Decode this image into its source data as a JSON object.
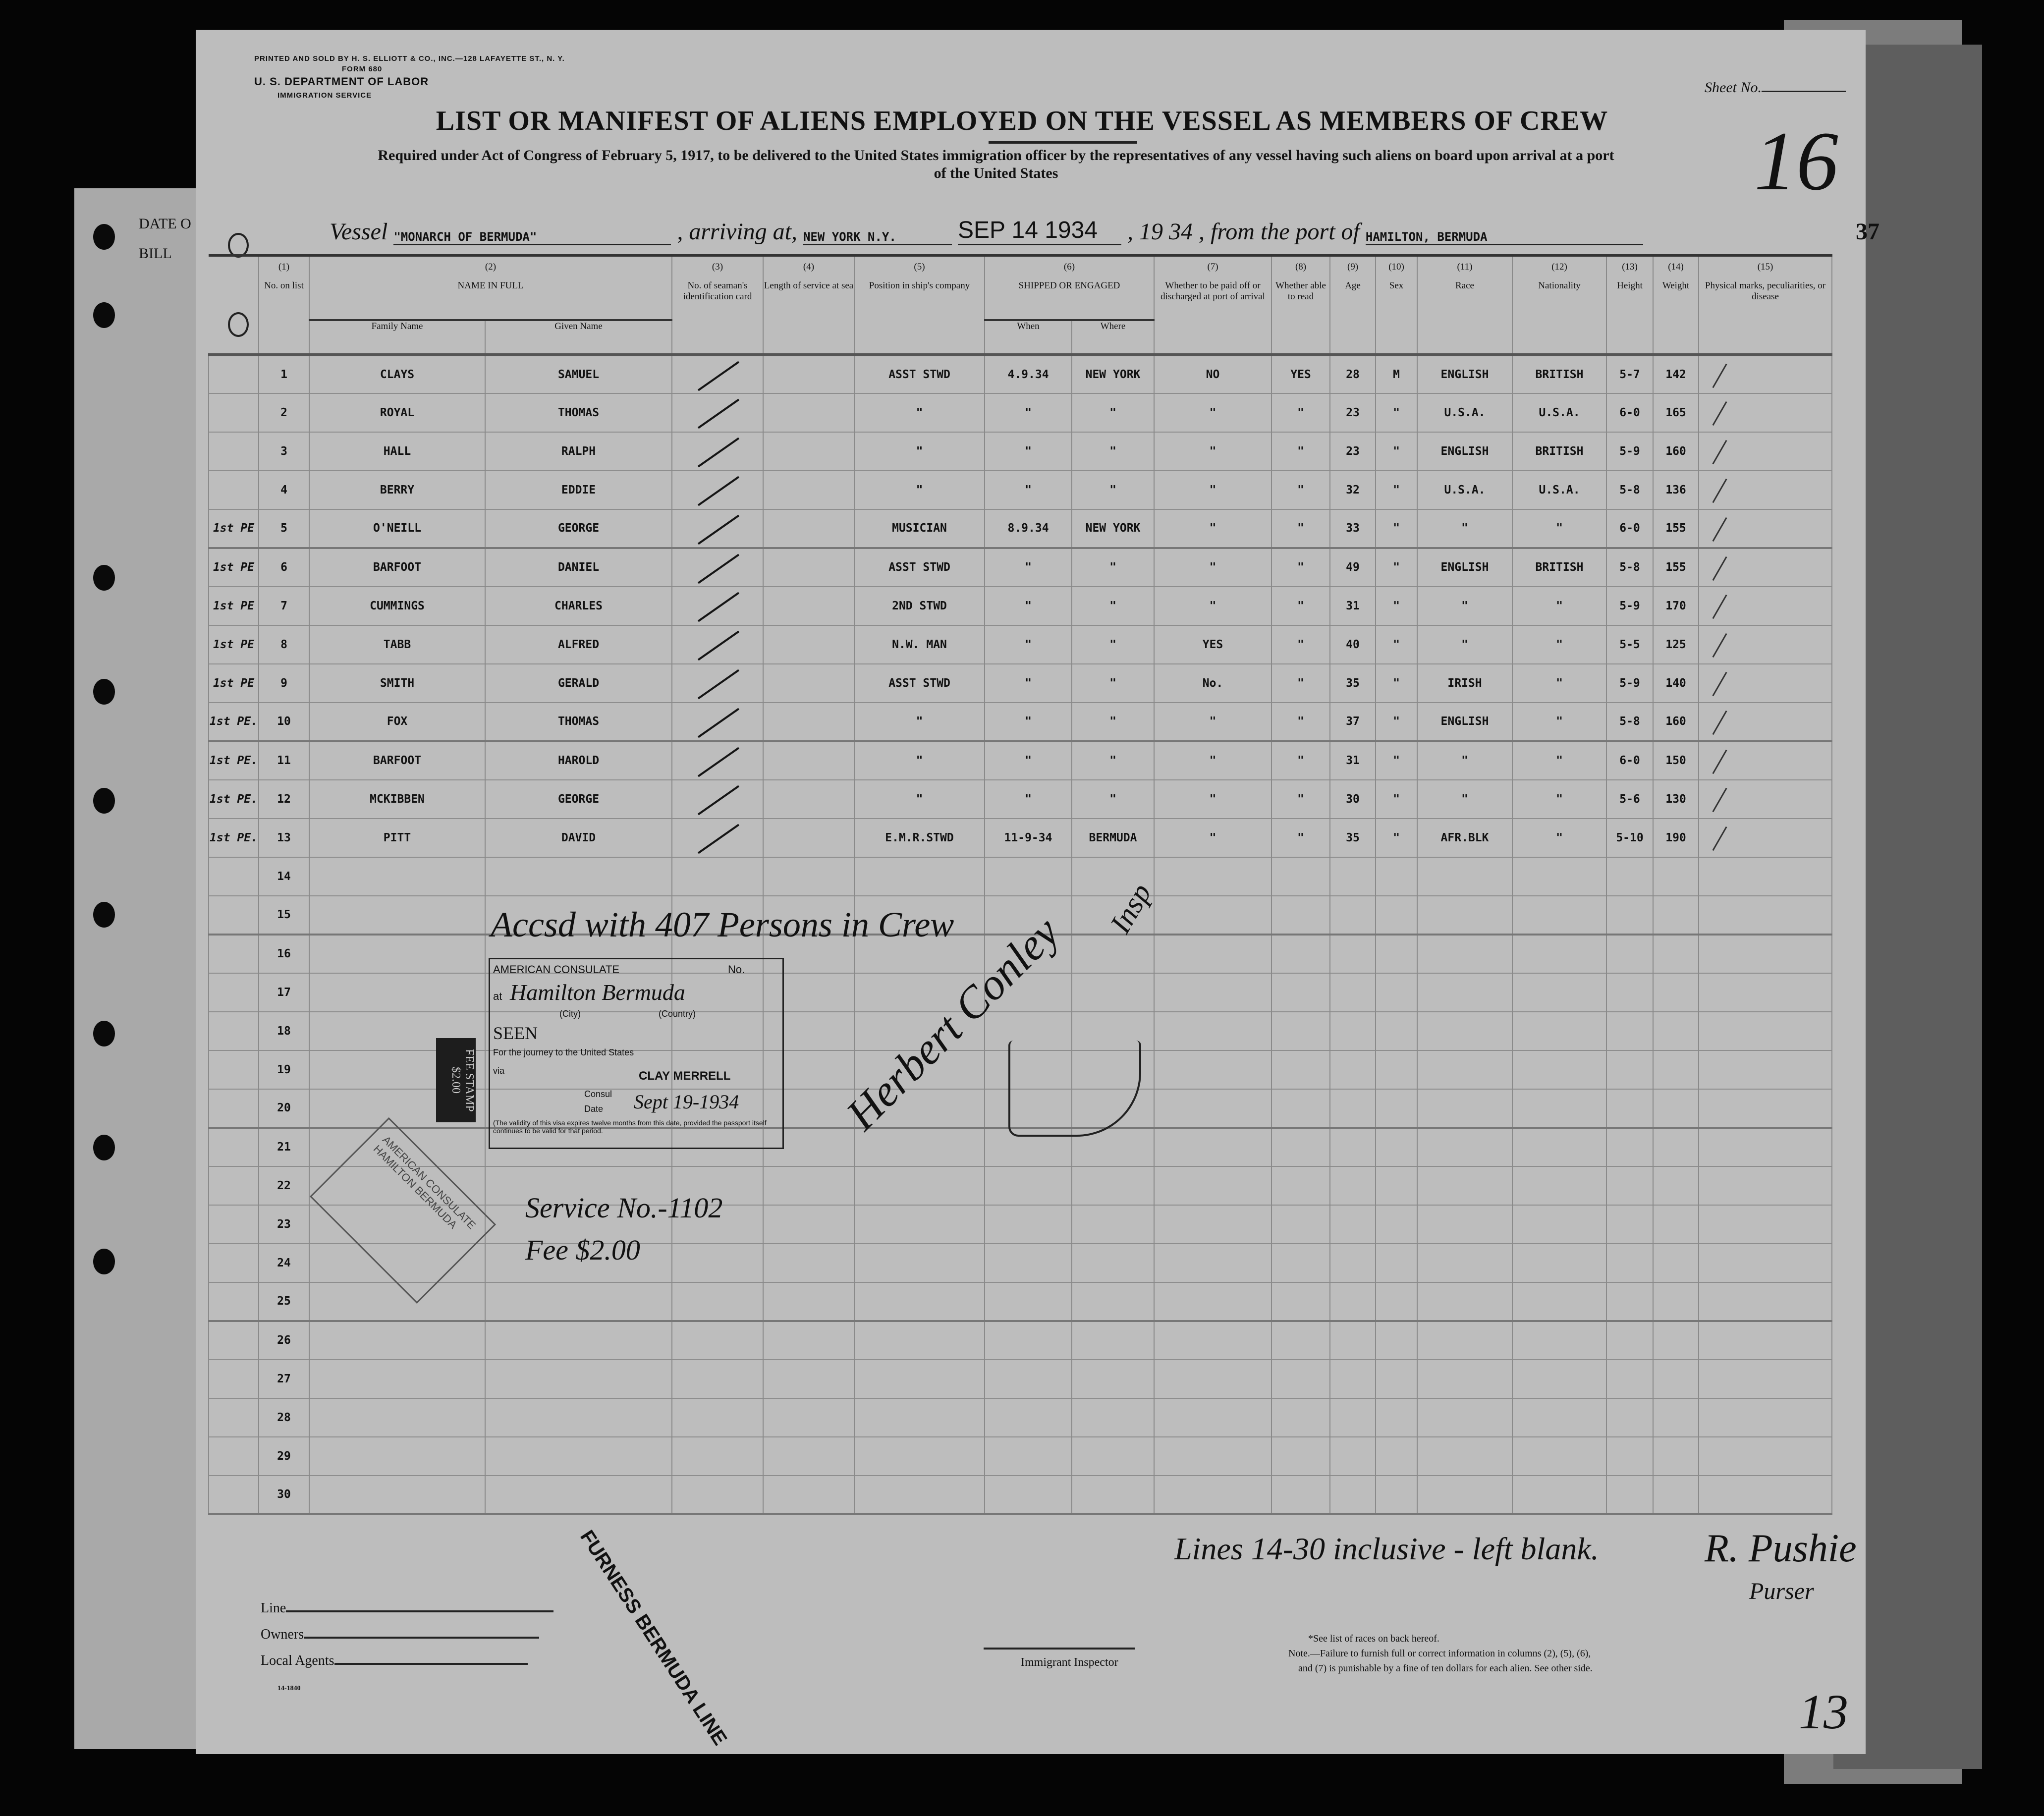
{
  "form": {
    "printer": "PRINTED AND SOLD BY H. S. ELLIOTT & CO., INC.—128 LAFAYETTE ST., N. Y.",
    "form_no": "FORM 680",
    "department": "U. S. DEPARTMENT OF LABOR",
    "service": "IMMIGRATION SERVICE",
    "sheet_label": "Sheet No.",
    "title": "LIST OR MANIFEST OF ALIENS EMPLOYED ON THE VESSEL AS MEMBERS OF CREW",
    "subtitle_1": "Required under Act of Congress of February 5, 1917, to be delivered to the United States immigration officer by the representatives of any vessel having such aliens on board upon arrival at a port",
    "subtitle_2": "of the United States",
    "sheet_handwritten": "16",
    "page_number": "37",
    "left_margin_1": "DATE O",
    "left_margin_2": "BILL"
  },
  "vessel_line": {
    "vessel_label": "Vessel",
    "vessel": "\"MONARCH OF BERMUDA\"",
    "arriving_label": ", arriving at,",
    "arriving": "NEW YORK N.Y.",
    "date_stamp": "SEP 14 1934",
    "year_label": ", 19",
    "year": "34",
    "from_label": ", from the port of",
    "from_port": "HAMILTON, BERMUDA"
  },
  "columns": {
    "c1": {
      "num": "(1)",
      "label": "No. on list"
    },
    "c2": {
      "num": "(2)",
      "label": "NAME IN FULL",
      "family": "Family Name",
      "given": "Given Name"
    },
    "c3": {
      "num": "(3)",
      "label": "No. of seaman's identification card"
    },
    "c4": {
      "num": "(4)",
      "label": "Length of service at sea"
    },
    "c5": {
      "num": "(5)",
      "label": "Position in ship's company"
    },
    "c6": {
      "num": "(6)",
      "label": "SHIPPED OR ENGAGED",
      "when": "When",
      "where": "Where"
    },
    "c7": {
      "num": "(7)",
      "label": "Whether to be paid off or discharged at port of arrival"
    },
    "c8": {
      "num": "(8)",
      "label": "Whether able to read"
    },
    "c9": {
      "num": "(9)",
      "label": "Age"
    },
    "c10": {
      "num": "(10)",
      "label": "Sex"
    },
    "c11": {
      "num": "(11)",
      "label": "Race"
    },
    "c12": {
      "num": "(12)",
      "label": "Nationality"
    },
    "c13": {
      "num": "(13)",
      "label": "Height"
    },
    "c14": {
      "num": "(14)",
      "label": "Weight"
    },
    "c15": {
      "num": "(15)",
      "label": "Physical marks, peculiarities, or disease"
    }
  },
  "rows": [
    {
      "note": "",
      "no": "1",
      "family": "CLAYS",
      "given": "SAMUEL",
      "position": "ASST STWD",
      "when": "4.9.34",
      "where": "NEW YORK",
      "paid_off": "NO",
      "read": "YES",
      "age": "28",
      "sex": "M",
      "race": "ENGLISH",
      "nationality": "BRITISH",
      "height": "5-7",
      "weight": "142",
      "checked": true
    },
    {
      "note": "",
      "no": "2",
      "family": "ROYAL",
      "given": "THOMAS",
      "position": "\"",
      "when": "\"",
      "where": "\"",
      "paid_off": "\"",
      "read": "\"",
      "age": "23",
      "sex": "\"",
      "race": "U.S.A.",
      "nationality": "U.S.A.",
      "height": "6-0",
      "weight": "165",
      "checked": true
    },
    {
      "note": "",
      "no": "3",
      "family": "HALL",
      "given": "RALPH",
      "position": "\"",
      "when": "\"",
      "where": "\"",
      "paid_off": "\"",
      "read": "\"",
      "age": "23",
      "sex": "\"",
      "race": "ENGLISH",
      "nationality": "BRITISH",
      "height": "5-9",
      "weight": "160",
      "checked": true
    },
    {
      "note": "",
      "no": "4",
      "family": "BERRY",
      "given": "EDDIE",
      "position": "\"",
      "when": "\"",
      "where": "\"",
      "paid_off": "\"",
      "read": "\"",
      "age": "32",
      "sex": "\"",
      "race": "U.S.A.",
      "nationality": "U.S.A.",
      "height": "5-8",
      "weight": "136",
      "checked": true
    },
    {
      "note": "1st PE",
      "no": "5",
      "family": "O'NEILL",
      "given": "GEORGE",
      "position": "MUSICIAN",
      "when": "8.9.34",
      "where": "NEW YORK",
      "paid_off": "\"",
      "read": "\"",
      "age": "33",
      "sex": "\"",
      "race": "\"",
      "nationality": "\"",
      "height": "6-0",
      "weight": "155",
      "checked": true
    },
    {
      "note": "1st PE",
      "no": "6",
      "family": "BARFOOT",
      "given": "DANIEL",
      "position": "ASST STWD",
      "when": "\"",
      "where": "\"",
      "paid_off": "\"",
      "read": "\"",
      "age": "49",
      "sex": "\"",
      "race": "ENGLISH",
      "nationality": "BRITISH",
      "height": "5-8",
      "weight": "155",
      "checked": true
    },
    {
      "note": "1st PE",
      "no": "7",
      "family": "CUMMINGS",
      "given": "CHARLES",
      "position": "2ND STWD",
      "when": "\"",
      "where": "\"",
      "paid_off": "\"",
      "read": "\"",
      "age": "31",
      "sex": "\"",
      "race": "\"",
      "nationality": "\"",
      "height": "5-9",
      "weight": "170",
      "checked": true
    },
    {
      "note": "1st PE",
      "no": "8",
      "family": "TABB",
      "given": "ALFRED",
      "position": "N.W. MAN",
      "when": "\"",
      "where": "\"",
      "paid_off": "YES",
      "read": "\"",
      "age": "40",
      "sex": "\"",
      "race": "\"",
      "nationality": "\"",
      "height": "5-5",
      "weight": "125",
      "checked": true
    },
    {
      "note": "1st PE",
      "no": "9",
      "family": "SMITH",
      "given": "GERALD",
      "position": "ASST STWD",
      "when": "\"",
      "where": "\"",
      "paid_off": "No.",
      "read": "\"",
      "age": "35",
      "sex": "\"",
      "race": "IRISH",
      "nationality": "\"",
      "height": "5-9",
      "weight": "140",
      "checked": true
    },
    {
      "note": "1st PE.",
      "no": "10",
      "family": "FOX",
      "given": "THOMAS",
      "position": "\"",
      "when": "\"",
      "where": "\"",
      "paid_off": "\"",
      "read": "\"",
      "age": "37",
      "sex": "\"",
      "race": "ENGLISH",
      "nationality": "\"",
      "height": "5-8",
      "weight": "160",
      "checked": true
    },
    {
      "note": "1st PE.",
      "no": "11",
      "family": "BARFOOT",
      "given": "HAROLD",
      "position": "\"",
      "when": "\"",
      "where": "\"",
      "paid_off": "\"",
      "read": "\"",
      "age": "31",
      "sex": "\"",
      "race": "\"",
      "nationality": "\"",
      "height": "6-0",
      "weight": "150",
      "checked": true
    },
    {
      "note": "1st PE.",
      "no": "12",
      "family": "MCKIBBEN",
      "given": "GEORGE",
      "position": "\"",
      "when": "\"",
      "where": "\"",
      "paid_off": "\"",
      "read": "\"",
      "age": "30",
      "sex": "\"",
      "race": "\"",
      "nationality": "\"",
      "height": "5-6",
      "weight": "130",
      "checked": true
    },
    {
      "note": "1st PE.",
      "no": "13",
      "family": "PITT",
      "given": "DAVID",
      "position": "E.M.R.STWD",
      "when": "11-9-34",
      "where": "BERMUDA",
      "paid_off": "\"",
      "read": "\"",
      "age": "35",
      "sex": "\"",
      "race": "AFR.BLK",
      "nationality": "\"",
      "height": "5-10",
      "weight": "190",
      "checked": true
    },
    {
      "no": "14"
    },
    {
      "no": "15"
    },
    {
      "no": "16"
    },
    {
      "no": "17"
    },
    {
      "no": "18"
    },
    {
      "no": "19"
    },
    {
      "no": "20"
    },
    {
      "no": "21"
    },
    {
      "no": "22"
    },
    {
      "no": "23"
    },
    {
      "no": "24"
    },
    {
      "no": "25"
    },
    {
      "no": "26"
    },
    {
      "no": "27"
    },
    {
      "no": "28"
    },
    {
      "no": "29"
    },
    {
      "no": "30"
    }
  ],
  "annotations": {
    "crew_note": "Accsd with 407 Persons in Crew",
    "inspector_signature": "Herbert Conley",
    "inspector_title": "Insp",
    "service_no": "Service No.-1102",
    "fee": "Fee $2.00",
    "lines_blank": "Lines 14-30 inclusive - left blank.",
    "purser_signature": "R. Pushie",
    "purser_title": "Purser",
    "corner_number": "13"
  },
  "consulate_stamp": {
    "heading": "AMERICAN CONSULATE",
    "at": "at",
    "city_handwritten": "Hamilton Bermuda",
    "city_label": "(City)",
    "country_label": "(Country)",
    "no_label": "No.",
    "seen": "SEEN",
    "journey": "For the journey to the United States",
    "via": "via",
    "consul_name": "CLAY MERRELL",
    "consul_label": "Consul",
    "date_label": "Date",
    "date": "Sept 19-1934",
    "validity": "(The validity of this visa expires twelve months from this date, provided the passport itself continues to be valid for that period.",
    "revenue_stamp": "FEE STAMP $2.00",
    "seal_text": "AMERICAN CONSULATE HAMILTON BERMUDA"
  },
  "footer": {
    "line_label": "Line",
    "owners_label": "Owners",
    "agents_label": "Local Agents",
    "form_code": "14-1840",
    "company_stamp": "FURNESS BERMUDA LINE",
    "inspector_label": "Immigrant Inspector",
    "note_1": "*See list of races on back hereof.",
    "note_2": "Note.—Failure to furnish full or correct information in columns (2), (5), (6),",
    "note_3": "and (7) is punishable by a fine of ten dollars for each alien. See other side."
  }
}
